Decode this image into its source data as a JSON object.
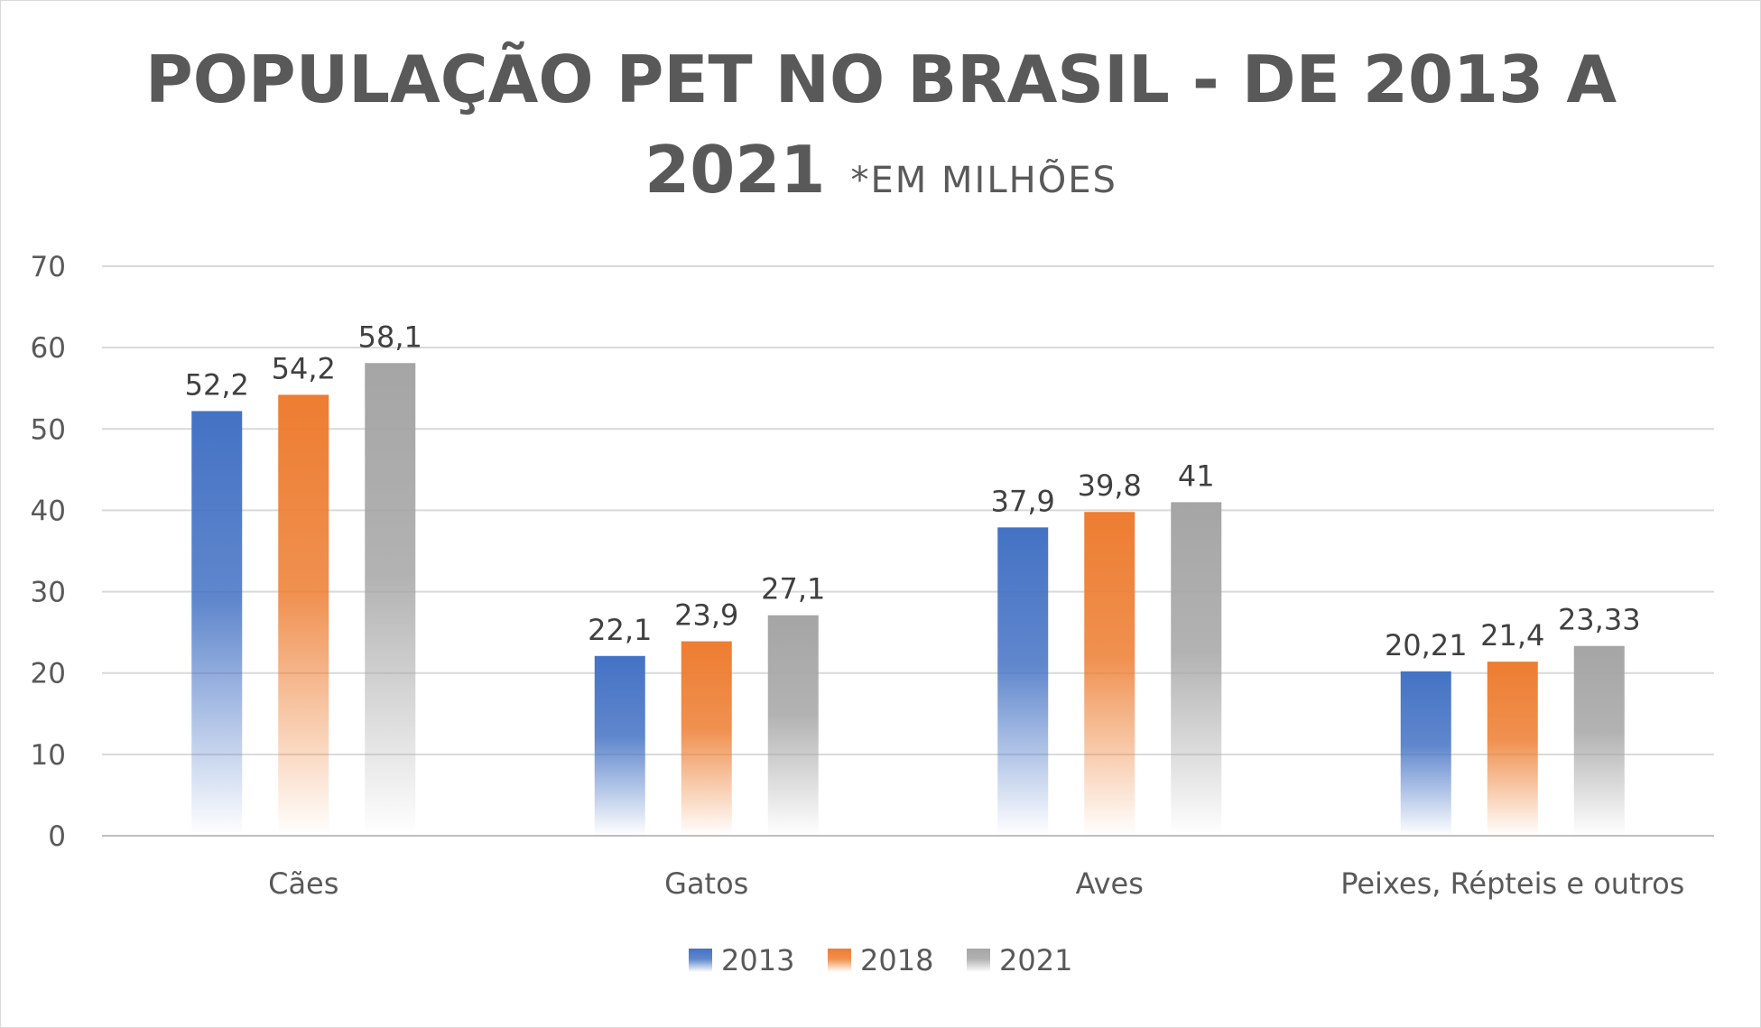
{
  "chart_data": {
    "type": "bar",
    "title": "POPULAÇÃO PET NO BRASIL - DE 2013 A 2021",
    "title_line1": "POPULAÇÃO PET NO BRASIL - DE 2013 A",
    "title_line2": "2021",
    "subtitle": "*EM MILHÕES",
    "categories": [
      "Cães",
      "Gatos",
      "Aves",
      "Peixes, Répteis e outros"
    ],
    "series": [
      {
        "name": "2013",
        "color": "#4472c4",
        "values": [
          52.2,
          22.1,
          37.9,
          20.21
        ],
        "labels": [
          "52,2",
          "22,1",
          "37,9",
          "20,21"
        ]
      },
      {
        "name": "2018",
        "color": "#ed7d31",
        "values": [
          54.2,
          23.9,
          39.8,
          21.4
        ],
        "labels": [
          "54,2",
          "23,9",
          "39,8",
          "21,4"
        ]
      },
      {
        "name": "2021",
        "color": "#a5a5a5",
        "values": [
          58.1,
          27.1,
          41,
          23.33
        ],
        "labels": [
          "58,1",
          "27,1",
          "41",
          "23,33"
        ]
      }
    ],
    "ylim": [
      0,
      70
    ],
    "yticks": [
      0,
      10,
      20,
      30,
      40,
      50,
      60,
      70
    ],
    "grid": true,
    "legend_position": "bottom"
  }
}
